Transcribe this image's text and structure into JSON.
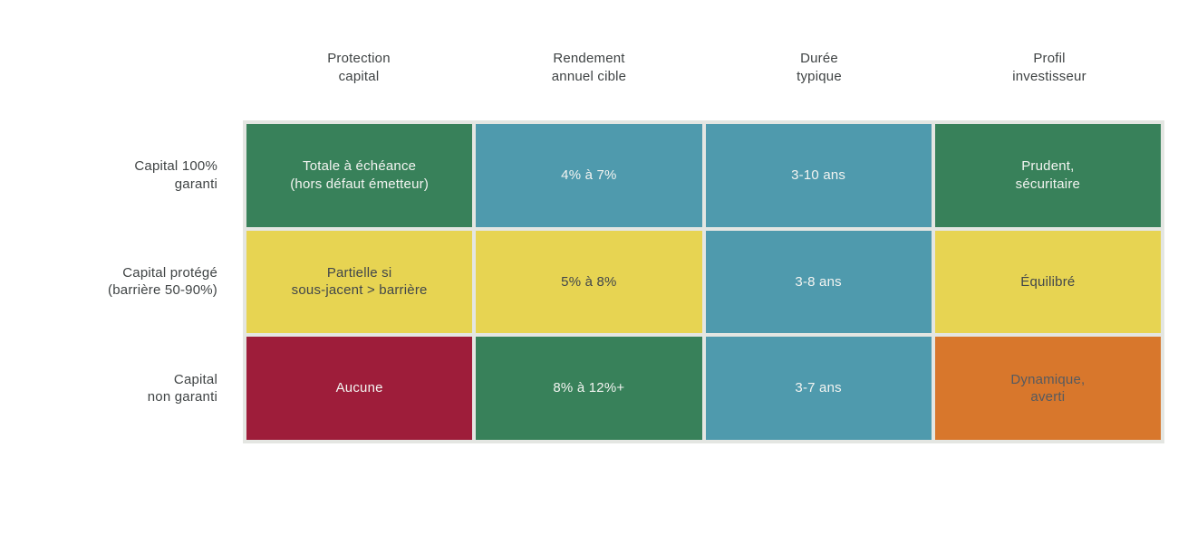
{
  "palette": {
    "green": "#38815a",
    "blue": "#4f9aad",
    "yellow": "#e7d452",
    "red": "#9e1d3a",
    "orange": "#d8772c",
    "grid_line": "#e4e6e2",
    "header_text": "#3f4344",
    "cell_text_light": "#f3f4f1",
    "cell_text_dark": "#41464b",
    "cell_text_orange": "#555a60"
  },
  "grid": {
    "col_headers": [
      "Protection\ncapital",
      "Rendement\nannuel cible",
      "Durée\ntypique",
      "Profil\ninvestisseur"
    ],
    "row_headers": [
      "Capital 100%\ngaranti",
      "Capital protégé\n(barrière 50-90%)",
      "Capital\nnon garanti"
    ],
    "rows": [
      {
        "cells": [
          {
            "text": "Totale à échéance\n(hors défaut émetteur)",
            "bg": "#38815a",
            "fg": "#f3f4f1"
          },
          {
            "text": "4% à 7%",
            "bg": "#4f9aad",
            "fg": "#f3f4f1"
          },
          {
            "text": "3-10 ans",
            "bg": "#4f9aad",
            "fg": "#f3f4f1"
          },
          {
            "text": "Prudent,\nsécuritaire",
            "bg": "#38815a",
            "fg": "#f3f4f1"
          }
        ]
      },
      {
        "cells": [
          {
            "text": "Partielle si\nsous-jacent > barrière",
            "bg": "#e7d452",
            "fg": "#41464b"
          },
          {
            "text": "5% à 8%",
            "bg": "#e7d452",
            "fg": "#41464b"
          },
          {
            "text": "3-8 ans",
            "bg": "#4f9aad",
            "fg": "#f3f4f1"
          },
          {
            "text": "Équilibré",
            "bg": "#e7d452",
            "fg": "#41464b"
          }
        ]
      },
      {
        "cells": [
          {
            "text": "Aucune",
            "bg": "#9e1d3a",
            "fg": "#f3f4f1"
          },
          {
            "text": "8% à 12%+",
            "bg": "#38815a",
            "fg": "#f3f4f1"
          },
          {
            "text": "3-7 ans",
            "bg": "#4f9aad",
            "fg": "#f3f4f1"
          },
          {
            "text": "Dynamique,\naverti",
            "bg": "#d8772c",
            "fg": "#555a60"
          }
        ]
      }
    ]
  },
  "chart_data": {
    "type": "table",
    "columns": [
      "Protection capital",
      "Rendement annuel cible",
      "Durée typique",
      "Profil investisseur"
    ],
    "row_labels": [
      "Capital 100% garanti",
      "Capital protégé (barrière 50-90%)",
      "Capital non garanti"
    ],
    "cells": [
      [
        "Totale à échéance (hors défaut émetteur)",
        "4% à 7%",
        "3-10 ans",
        "Prudent, sécuritaire"
      ],
      [
        "Partielle si sous-jacent > barrière",
        "5% à 8%",
        "3-8 ans",
        "Équilibré"
      ],
      [
        "Aucune",
        "8% à 12%+",
        "3-7 ans",
        "Dynamique, averti"
      ]
    ],
    "cell_colors": [
      [
        "green",
        "blue",
        "blue",
        "green"
      ],
      [
        "yellow",
        "yellow",
        "blue",
        "yellow"
      ],
      [
        "red",
        "green",
        "blue",
        "orange"
      ]
    ],
    "color_legend": {
      "green": "#38815a",
      "blue": "#4f9aad",
      "yellow": "#e7d452",
      "red": "#9e1d3a",
      "orange": "#d8772c"
    },
    "title": "",
    "grid": "colored-cell matrix, no axes, no legend"
  }
}
